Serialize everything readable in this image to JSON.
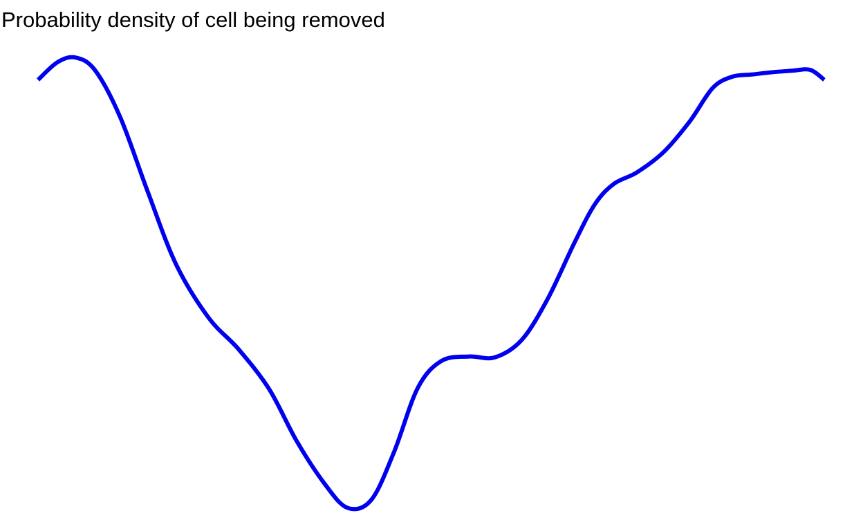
{
  "chart_data": {
    "type": "line",
    "title": "Probability density of cell being removed",
    "xlabel": "",
    "ylabel": "",
    "grid": false,
    "axes_visible": false,
    "ylim": [
      0,
      100
    ],
    "xlim": [
      0,
      100
    ],
    "colors": {
      "line": "#0000ee",
      "background": "#ffffff",
      "title": "#000000"
    },
    "series": [
      {
        "x": [
          0,
          2.5,
          4.8,
          7.3,
          10.5,
          14,
          17.6,
          21.7,
          25.5,
          29.4,
          32.9,
          36.5,
          39.4,
          42.4,
          45.3,
          48.3,
          51.3,
          54.8,
          58.1,
          61.5,
          64.8,
          68.2,
          70.8,
          73.2,
          76.2,
          79.6,
          82.9,
          85.8,
          88.3,
          90.9,
          93.5,
          95.9,
          98.2,
          100
        ],
        "y": [
          94.3,
          98.2,
          99.2,
          96.3,
          85.9,
          69.5,
          53.6,
          42.0,
          35.1,
          26.3,
          14.9,
          5.4,
          0.2,
          2.0,
          12.6,
          26.6,
          32.5,
          33.5,
          33.3,
          37.1,
          46.1,
          58.4,
          66.9,
          71.4,
          74.0,
          78.5,
          85.2,
          92.5,
          95.0,
          95.5,
          96.0,
          96.3,
          96.5,
          94.3
        ]
      }
    ]
  }
}
